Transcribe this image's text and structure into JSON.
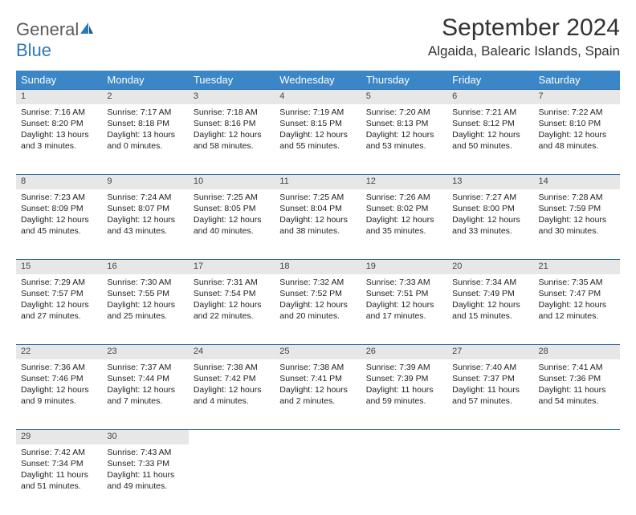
{
  "logo": {
    "general": "General",
    "blue": "Blue"
  },
  "title": "September 2024",
  "location": "Algaida, Balearic Islands, Spain",
  "colors": {
    "header_bg": "#3b86c6",
    "header_text": "#ffffff",
    "daynum_bg": "#e7e7e7",
    "rule": "#2f6da8",
    "logo_gray": "#5a5a5a",
    "logo_blue": "#2f78b8",
    "text": "#222222",
    "background": "#ffffff"
  },
  "typography": {
    "title_fontsize": 30,
    "location_fontsize": 17,
    "dayheader_fontsize": 13,
    "cell_fontsize": 10.5
  },
  "day_headers": [
    "Sunday",
    "Monday",
    "Tuesday",
    "Wednesday",
    "Thursday",
    "Friday",
    "Saturday"
  ],
  "weeks": [
    {
      "nums": [
        "1",
        "2",
        "3",
        "4",
        "5",
        "6",
        "7"
      ],
      "cells": [
        {
          "sunrise": "Sunrise: 7:16 AM",
          "sunset": "Sunset: 8:20 PM",
          "day1": "Daylight: 13 hours",
          "day2": "and 3 minutes."
        },
        {
          "sunrise": "Sunrise: 7:17 AM",
          "sunset": "Sunset: 8:18 PM",
          "day1": "Daylight: 13 hours",
          "day2": "and 0 minutes."
        },
        {
          "sunrise": "Sunrise: 7:18 AM",
          "sunset": "Sunset: 8:16 PM",
          "day1": "Daylight: 12 hours",
          "day2": "and 58 minutes."
        },
        {
          "sunrise": "Sunrise: 7:19 AM",
          "sunset": "Sunset: 8:15 PM",
          "day1": "Daylight: 12 hours",
          "day2": "and 55 minutes."
        },
        {
          "sunrise": "Sunrise: 7:20 AM",
          "sunset": "Sunset: 8:13 PM",
          "day1": "Daylight: 12 hours",
          "day2": "and 53 minutes."
        },
        {
          "sunrise": "Sunrise: 7:21 AM",
          "sunset": "Sunset: 8:12 PM",
          "day1": "Daylight: 12 hours",
          "day2": "and 50 minutes."
        },
        {
          "sunrise": "Sunrise: 7:22 AM",
          "sunset": "Sunset: 8:10 PM",
          "day1": "Daylight: 12 hours",
          "day2": "and 48 minutes."
        }
      ]
    },
    {
      "nums": [
        "8",
        "9",
        "10",
        "11",
        "12",
        "13",
        "14"
      ],
      "cells": [
        {
          "sunrise": "Sunrise: 7:23 AM",
          "sunset": "Sunset: 8:09 PM",
          "day1": "Daylight: 12 hours",
          "day2": "and 45 minutes."
        },
        {
          "sunrise": "Sunrise: 7:24 AM",
          "sunset": "Sunset: 8:07 PM",
          "day1": "Daylight: 12 hours",
          "day2": "and 43 minutes."
        },
        {
          "sunrise": "Sunrise: 7:25 AM",
          "sunset": "Sunset: 8:05 PM",
          "day1": "Daylight: 12 hours",
          "day2": "and 40 minutes."
        },
        {
          "sunrise": "Sunrise: 7:25 AM",
          "sunset": "Sunset: 8:04 PM",
          "day1": "Daylight: 12 hours",
          "day2": "and 38 minutes."
        },
        {
          "sunrise": "Sunrise: 7:26 AM",
          "sunset": "Sunset: 8:02 PM",
          "day1": "Daylight: 12 hours",
          "day2": "and 35 minutes."
        },
        {
          "sunrise": "Sunrise: 7:27 AM",
          "sunset": "Sunset: 8:00 PM",
          "day1": "Daylight: 12 hours",
          "day2": "and 33 minutes."
        },
        {
          "sunrise": "Sunrise: 7:28 AM",
          "sunset": "Sunset: 7:59 PM",
          "day1": "Daylight: 12 hours",
          "day2": "and 30 minutes."
        }
      ]
    },
    {
      "nums": [
        "15",
        "16",
        "17",
        "18",
        "19",
        "20",
        "21"
      ],
      "cells": [
        {
          "sunrise": "Sunrise: 7:29 AM",
          "sunset": "Sunset: 7:57 PM",
          "day1": "Daylight: 12 hours",
          "day2": "and 27 minutes."
        },
        {
          "sunrise": "Sunrise: 7:30 AM",
          "sunset": "Sunset: 7:55 PM",
          "day1": "Daylight: 12 hours",
          "day2": "and 25 minutes."
        },
        {
          "sunrise": "Sunrise: 7:31 AM",
          "sunset": "Sunset: 7:54 PM",
          "day1": "Daylight: 12 hours",
          "day2": "and 22 minutes."
        },
        {
          "sunrise": "Sunrise: 7:32 AM",
          "sunset": "Sunset: 7:52 PM",
          "day1": "Daylight: 12 hours",
          "day2": "and 20 minutes."
        },
        {
          "sunrise": "Sunrise: 7:33 AM",
          "sunset": "Sunset: 7:51 PM",
          "day1": "Daylight: 12 hours",
          "day2": "and 17 minutes."
        },
        {
          "sunrise": "Sunrise: 7:34 AM",
          "sunset": "Sunset: 7:49 PM",
          "day1": "Daylight: 12 hours",
          "day2": "and 15 minutes."
        },
        {
          "sunrise": "Sunrise: 7:35 AM",
          "sunset": "Sunset: 7:47 PM",
          "day1": "Daylight: 12 hours",
          "day2": "and 12 minutes."
        }
      ]
    },
    {
      "nums": [
        "22",
        "23",
        "24",
        "25",
        "26",
        "27",
        "28"
      ],
      "cells": [
        {
          "sunrise": "Sunrise: 7:36 AM",
          "sunset": "Sunset: 7:46 PM",
          "day1": "Daylight: 12 hours",
          "day2": "and 9 minutes."
        },
        {
          "sunrise": "Sunrise: 7:37 AM",
          "sunset": "Sunset: 7:44 PM",
          "day1": "Daylight: 12 hours",
          "day2": "and 7 minutes."
        },
        {
          "sunrise": "Sunrise: 7:38 AM",
          "sunset": "Sunset: 7:42 PM",
          "day1": "Daylight: 12 hours",
          "day2": "and 4 minutes."
        },
        {
          "sunrise": "Sunrise: 7:38 AM",
          "sunset": "Sunset: 7:41 PM",
          "day1": "Daylight: 12 hours",
          "day2": "and 2 minutes."
        },
        {
          "sunrise": "Sunrise: 7:39 AM",
          "sunset": "Sunset: 7:39 PM",
          "day1": "Daylight: 11 hours",
          "day2": "and 59 minutes."
        },
        {
          "sunrise": "Sunrise: 7:40 AM",
          "sunset": "Sunset: 7:37 PM",
          "day1": "Daylight: 11 hours",
          "day2": "and 57 minutes."
        },
        {
          "sunrise": "Sunrise: 7:41 AM",
          "sunset": "Sunset: 7:36 PM",
          "day1": "Daylight: 11 hours",
          "day2": "and 54 minutes."
        }
      ]
    },
    {
      "nums": [
        "29",
        "30",
        "",
        "",
        "",
        "",
        ""
      ],
      "cells": [
        {
          "sunrise": "Sunrise: 7:42 AM",
          "sunset": "Sunset: 7:34 PM",
          "day1": "Daylight: 11 hours",
          "day2": "and 51 minutes."
        },
        {
          "sunrise": "Sunrise: 7:43 AM",
          "sunset": "Sunset: 7:33 PM",
          "day1": "Daylight: 11 hours",
          "day2": "and 49 minutes."
        },
        null,
        null,
        null,
        null,
        null
      ]
    }
  ]
}
